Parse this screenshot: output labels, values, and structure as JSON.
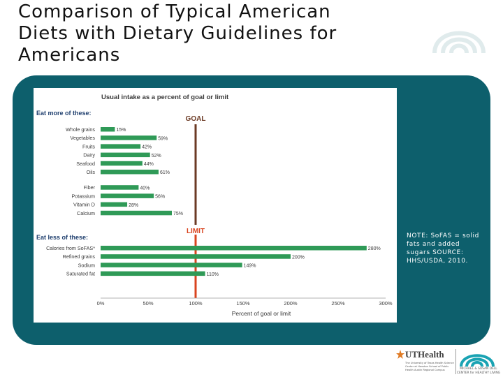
{
  "slide": {
    "title": "Comparison of Typical American Diets with Dietary Guidelines for Americans",
    "note": "NOTE: SoFAS = solid fats and added sugars SOURCE: HHS/USDA, 2010."
  },
  "colors": {
    "panel": "#0d5f6c",
    "bar": "#2f9a57",
    "goal_line": "#6b3a24",
    "limit_line": "#d9441f",
    "section_label": "#1f3f6e",
    "axis_label": "#3a3a3a"
  },
  "chart_data": {
    "type": "bar",
    "orientation": "horizontal",
    "title": "Usual intake as a percent of goal or limit",
    "xlabel": "Percent of goal or limit",
    "xlim": [
      0,
      300
    ],
    "xticks": [
      0,
      50,
      100,
      150,
      200,
      250,
      300
    ],
    "xtick_labels": [
      "0%",
      "50%",
      "100%",
      "150%",
      "200%",
      "250%",
      "300%"
    ],
    "reference_lines": [
      {
        "label": "GOAL",
        "x": 100
      },
      {
        "label": "LIMIT",
        "x": 100
      }
    ],
    "groups": [
      {
        "label": "Eat more of these:",
        "bars": [
          {
            "category": "Whole grains",
            "value": 15,
            "label": "15%"
          },
          {
            "category": "Vegetables",
            "value": 59,
            "label": "59%"
          },
          {
            "category": "Fruits",
            "value": 42,
            "label": "42%"
          },
          {
            "category": "Dairy",
            "value": 52,
            "label": "52%"
          },
          {
            "category": "Seafood",
            "value": 44,
            "label": "44%"
          },
          {
            "category": "Oils",
            "value": 61,
            "label": "61%"
          },
          {
            "category": "Fiber",
            "value": 40,
            "label": "40%"
          },
          {
            "category": "Potassium",
            "value": 56,
            "label": "56%"
          },
          {
            "category": "Vitamin D",
            "value": 28,
            "label": "28%"
          },
          {
            "category": "Calcium",
            "value": 75,
            "label": "75%"
          }
        ]
      },
      {
        "label": "Eat less of these:",
        "bars": [
          {
            "category": "Calories from SoFAS*",
            "value": 280,
            "label": "280%"
          },
          {
            "category": "Refined grains",
            "value": 200,
            "label": "200%"
          },
          {
            "category": "Sodium",
            "value": 149,
            "label": "149%"
          },
          {
            "category": "Saturated fat",
            "value": 110,
            "label": "110%"
          }
        ]
      }
    ]
  },
  "logos": {
    "ut_name": "UTHealth",
    "ut_sub": "The University of Texas Health Science Center at Houston School of Public Health Austin Regional Campus",
    "dell_caption": "MICHAEL & SUSAN DELL CENTER for HEALTHY LIVING"
  }
}
